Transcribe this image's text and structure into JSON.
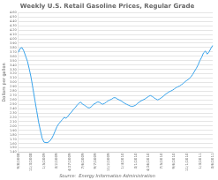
{
  "chart_data": {
    "type": "line",
    "title": "Weekly U.S. Retail Gasoline Prices, Regular Grade",
    "y_label": "Dollars per gallon",
    "annotations": [
      "Source:  Energy Information Administration"
    ],
    "grid": "y",
    "ylim": [
      1.4,
      4.6
    ],
    "yticks": [
      {
        "value": 1.4,
        "label": "1.40"
      },
      {
        "value": 1.5,
        "label": "1.50"
      },
      {
        "value": 1.6,
        "label": "1.60"
      },
      {
        "value": 1.7,
        "label": "1.70"
      },
      {
        "value": 1.8,
        "label": "1.80"
      },
      {
        "value": 1.9,
        "label": "1.90"
      },
      {
        "value": 2,
        "label": "2.00"
      },
      {
        "value": 2.1,
        "label": "2.10"
      },
      {
        "value": 2.2,
        "label": "2.20"
      },
      {
        "value": 2.3,
        "label": "2.30"
      },
      {
        "value": 2.4,
        "label": "2.40"
      },
      {
        "value": 2.5,
        "label": "2.50"
      },
      {
        "value": 2.6,
        "label": "2.60"
      },
      {
        "value": 2.7,
        "label": "2.70"
      },
      {
        "value": 2.8,
        "label": "2.80"
      },
      {
        "value": 2.9,
        "label": "2.90"
      },
      {
        "value": 3,
        "label": "3.00"
      },
      {
        "value": 3.1,
        "label": "3.10"
      },
      {
        "value": 3.2,
        "label": "3.20"
      },
      {
        "value": 3.3,
        "label": "3.30"
      },
      {
        "value": 3.4,
        "label": "3.40"
      },
      {
        "value": 3.5,
        "label": "3.50"
      },
      {
        "value": 3.6,
        "label": "3.60"
      },
      {
        "value": 3.7,
        "label": "3.70"
      },
      {
        "value": 3.8,
        "label": "3.80"
      },
      {
        "value": 3.9,
        "label": "3.90"
      },
      {
        "value": 4,
        "label": "4.00"
      },
      {
        "value": 4.1,
        "label": "4.10"
      },
      {
        "value": 4.2,
        "label": "4.20"
      },
      {
        "value": 4.3,
        "label": "4.30"
      },
      {
        "value": 4.4,
        "label": "4.40"
      },
      {
        "value": 4.5,
        "label": "4.50"
      },
      {
        "value": 4.6,
        "label": "4.60"
      }
    ],
    "categories": [
      "9/8/2008",
      null,
      null,
      null,
      null,
      null,
      null,
      "11/3/2008",
      null,
      null,
      null,
      null,
      null,
      null,
      "1/5/2009",
      null,
      null,
      null,
      null,
      null,
      null,
      "3/2/2009",
      null,
      null,
      null,
      null,
      null,
      null,
      "4/27/2009",
      null,
      null,
      null,
      null,
      null,
      null,
      "7/6/2009",
      null,
      null,
      null,
      null,
      null,
      null,
      "9/7/2009",
      null,
      null,
      null,
      null,
      null,
      null,
      "11/2/2009",
      null,
      null,
      null,
      null,
      null,
      null,
      null,
      "1/4/2010",
      null,
      null,
      null,
      null,
      null,
      null,
      "3/1/2010",
      null,
      null,
      null,
      null,
      null,
      null,
      "4/26/2010",
      null,
      null,
      null,
      null,
      null,
      null,
      "7/5/2010",
      null,
      null,
      null,
      null,
      null,
      null,
      "9/6/2010",
      null,
      null,
      null,
      null,
      null,
      null,
      "11/1/2010",
      null,
      null,
      null,
      null,
      null,
      null,
      "1/3/2011",
      null,
      null,
      null,
      null,
      null,
      null,
      "3/6/2011"
    ],
    "values": [
      3.69,
      3.78,
      3.8,
      3.72,
      3.6,
      3.48,
      3.3,
      3.1,
      2.85,
      2.6,
      2.35,
      2.1,
      1.9,
      1.72,
      1.63,
      1.62,
      1.62,
      1.65,
      1.7,
      1.78,
      1.88,
      1.98,
      2.05,
      2.1,
      2.15,
      2.2,
      2.18,
      2.22,
      2.28,
      2.32,
      2.38,
      2.42,
      2.48,
      2.52,
      2.55,
      2.5,
      2.48,
      2.45,
      2.42,
      2.42,
      2.45,
      2.5,
      2.52,
      2.55,
      2.55,
      2.52,
      2.5,
      2.52,
      2.55,
      2.58,
      2.6,
      2.62,
      2.65,
      2.65,
      2.62,
      2.6,
      2.58,
      2.55,
      2.52,
      2.5,
      2.48,
      2.46,
      2.45,
      2.46,
      2.48,
      2.52,
      2.55,
      2.58,
      2.6,
      2.62,
      2.65,
      2.68,
      2.7,
      2.68,
      2.65,
      2.62,
      2.6,
      2.62,
      2.65,
      2.68,
      2.72,
      2.75,
      2.78,
      2.8,
      2.82,
      2.85,
      2.88,
      2.9,
      2.92,
      2.95,
      2.98,
      3.02,
      3.05,
      3.08,
      3.12,
      3.18,
      3.25,
      3.32,
      3.4,
      3.5,
      3.58,
      3.68,
      3.72,
      3.65,
      3.7,
      3.78,
      3.85
    ]
  }
}
